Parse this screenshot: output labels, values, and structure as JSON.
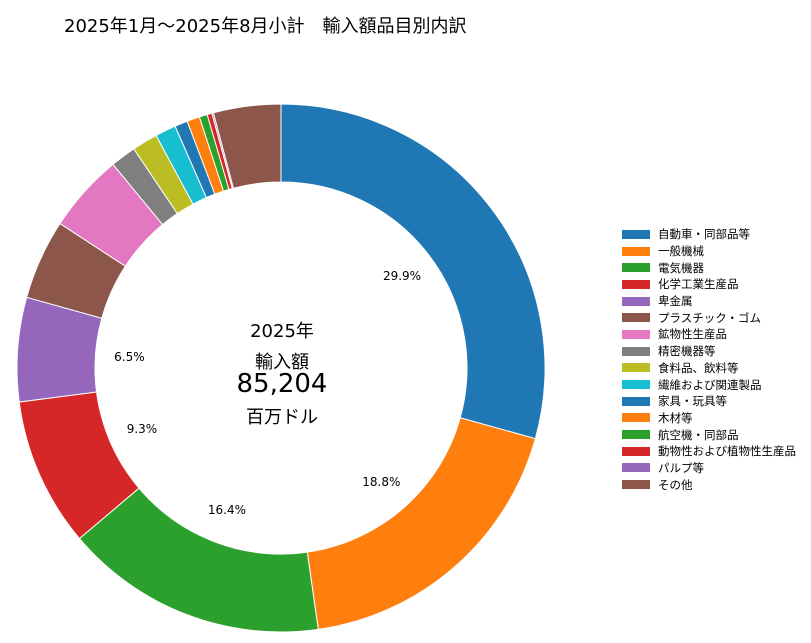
{
  "chart_data": {
    "type": "pie",
    "title": "2025年1月～2025年8月小計　輸入額品目別内訳",
    "center": {
      "year": "2025年",
      "label": "輸入額",
      "value": "85,204",
      "unit": "百万ドル"
    },
    "categories": [
      "自動車・同部品等",
      "一般機械",
      "電気機器",
      "化学工業生産品",
      "卑金属",
      "プラスチック・ゴム",
      "鉱物性生産品",
      "精密機器等",
      "食料品、飲料等",
      "繊維および関連製品",
      "家具・玩具等",
      "木材等",
      "航空機・同部品",
      "動物性および植物性生産品",
      "パルプ等",
      "その他"
    ],
    "values": [
      29.9,
      18.8,
      16.4,
      9.3,
      6.5,
      5.0,
      4.9,
      1.6,
      1.6,
      1.3,
      0.8,
      0.8,
      0.5,
      0.3,
      0.1,
      4.2
    ],
    "percent_labels": [
      "29.9%",
      "18.8%",
      "16.4%",
      "9.3%",
      "6.5%"
    ],
    "colors": [
      "#1f77b4",
      "#ff7f0e",
      "#2ca02c",
      "#d62728",
      "#9467bd",
      "#8c564b",
      "#e377c2",
      "#7f7f7f",
      "#bcbd22",
      "#17becf",
      "#1f77b4",
      "#ff7f0e",
      "#2ca02c",
      "#d62728",
      "#9467bd",
      "#8c564b"
    ],
    "legend_position": "right",
    "hole": true
  }
}
